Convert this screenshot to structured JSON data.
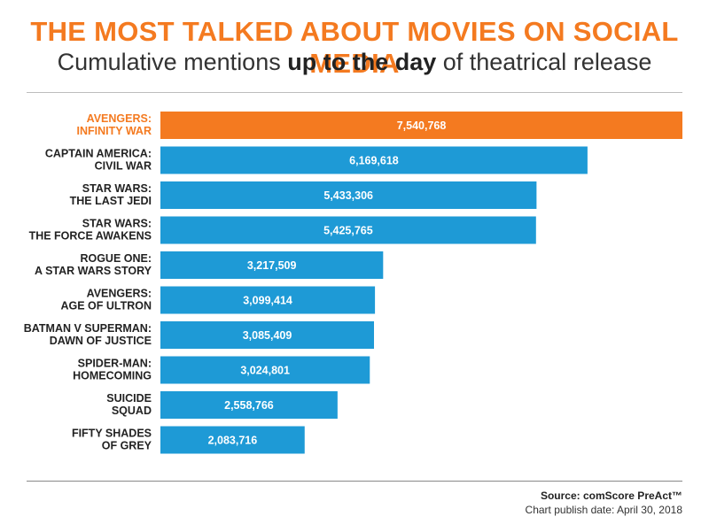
{
  "header": {
    "title": "THE MOST TALKED ABOUT MOVIES ON SOCIAL MEDIA",
    "subtitle_pre": "Cumulative mentions ",
    "subtitle_bold": "up to the day",
    "subtitle_post": " of theatrical release"
  },
  "footer": {
    "source": "Source: comScore PreAct™",
    "publish_date": "Chart publish date: April 30, 2018"
  },
  "colors": {
    "highlight": "#f47a20",
    "bar": "#1e9ad6",
    "title": "#f47a20",
    "label": "#222222"
  },
  "chart_data": {
    "type": "bar",
    "orientation": "horizontal",
    "title": "THE MOST TALKED ABOUT MOVIES ON SOCIAL MEDIA",
    "subtitle": "Cumulative mentions up to the day of theatrical release",
    "xlabel": "",
    "ylabel": "",
    "grid": false,
    "xlim": [
      0,
      7540768
    ],
    "highlight_index": 0,
    "categories": [
      [
        "AVENGERS:",
        "INFINITY WAR"
      ],
      [
        "CAPTAIN AMERICA:",
        "CIVIL WAR"
      ],
      [
        "STAR WARS:",
        "THE LAST JEDI"
      ],
      [
        "STAR WARS:",
        "THE FORCE AWAKENS"
      ],
      [
        "ROGUE ONE:",
        "A STAR WARS STORY"
      ],
      [
        "AVENGERS:",
        "AGE OF ULTRON"
      ],
      [
        "BATMAN V SUPERMAN:",
        "DAWN OF JUSTICE"
      ],
      [
        "SPIDER-MAN:",
        "HOMECOMING"
      ],
      [
        "SUICIDE",
        "SQUAD"
      ],
      [
        "FIFTY SHADES",
        "OF GREY"
      ]
    ],
    "values": [
      7540768,
      6169618,
      5433306,
      5425765,
      3217509,
      3099414,
      3085409,
      3024801,
      2558766,
      2083716
    ],
    "value_labels": [
      "7,540,768",
      "6,169,618",
      "5,433,306",
      "5,425,765",
      "3,217,509",
      "3,099,414",
      "3,085,409",
      "3,024,801",
      "2,558,766",
      "2,083,716"
    ]
  }
}
